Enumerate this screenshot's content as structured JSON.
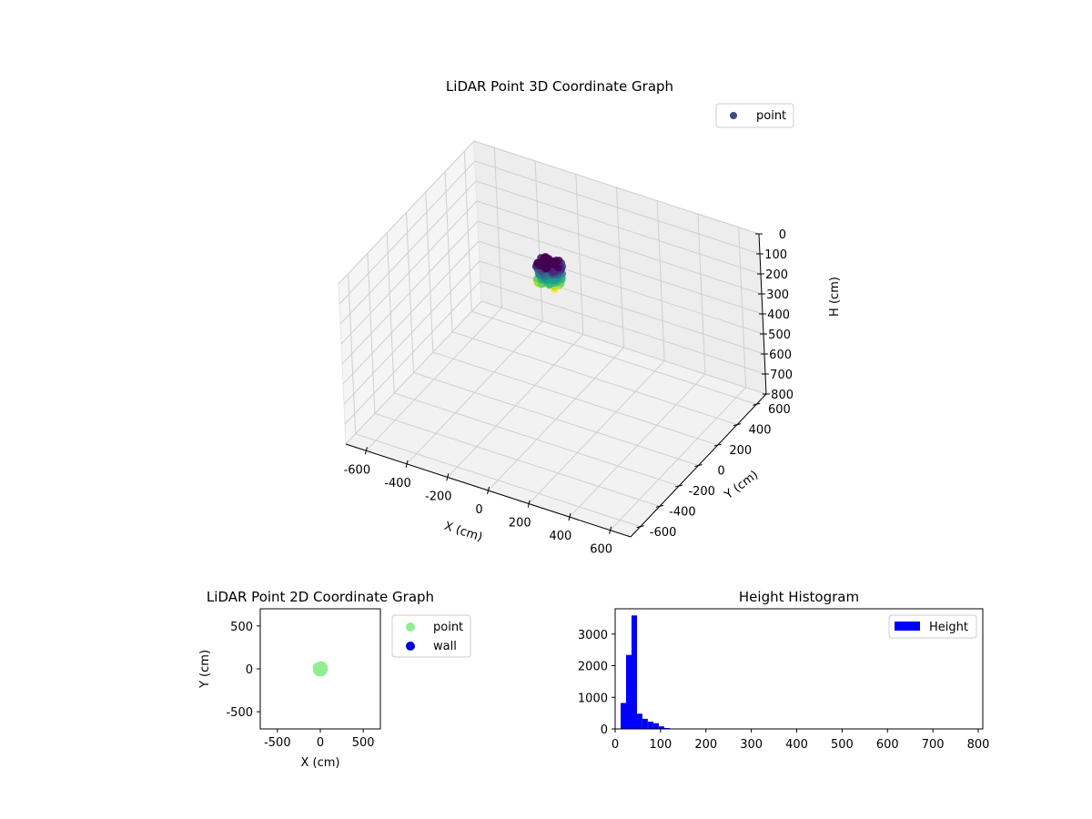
{
  "chart_data": [
    {
      "type": "scatter3d",
      "title": "LiDAR Point 3D Coordinate Graph",
      "xlabel": "X (cm)",
      "ylabel": "Y (cm)",
      "zlabel": "H (cm)",
      "xlim": [
        -700,
        700
      ],
      "ylim": [
        -700,
        700
      ],
      "zlim": [
        0,
        800
      ],
      "z_inverted": true,
      "x_ticks": [
        -600,
        -400,
        -200,
        0,
        200,
        400,
        600
      ],
      "y_ticks": [
        -600,
        -400,
        -200,
        0,
        200,
        400,
        600
      ],
      "z_ticks": [
        0,
        100,
        200,
        300,
        400,
        500,
        600,
        700,
        800
      ],
      "grid": true,
      "colormap": "viridis",
      "legend": {
        "placement": "upper-right",
        "entries": [
          {
            "label": "point",
            "color": "#3e4a89"
          }
        ]
      },
      "cluster": {
        "x_range": [
          -60,
          60
        ],
        "y_range": [
          -60,
          60
        ],
        "h_range": [
          10,
          120
        ]
      }
    },
    {
      "type": "scatter",
      "title": "LiDAR Point 2D Coordinate Graph",
      "xlabel": "X (cm)",
      "ylabel": "Y (cm)",
      "xlim": [
        -700,
        700
      ],
      "ylim": [
        -700,
        700
      ],
      "x_ticks": [
        -500,
        0,
        500
      ],
      "y_ticks": [
        -500,
        0,
        500
      ],
      "legend": {
        "placement": "outside-right",
        "entries": [
          {
            "label": "point",
            "color": "#90ee90"
          },
          {
            "label": "wall",
            "color": "#0000dd"
          }
        ]
      },
      "series": [
        {
          "name": "point",
          "color": "#90ee90",
          "cluster": {
            "x_range": [
              -60,
              60
            ],
            "y_range": [
              -60,
              60
            ]
          }
        },
        {
          "name": "wall",
          "color": "#0000dd",
          "points": []
        }
      ]
    },
    {
      "type": "bar",
      "title": "Height Histogram",
      "xlabel": "",
      "ylabel": "",
      "xlim": [
        0,
        810
      ],
      "ylim": [
        0,
        3800
      ],
      "x_ticks": [
        0,
        100,
        200,
        300,
        400,
        500,
        600,
        700,
        800
      ],
      "y_ticks": [
        0,
        1000,
        2000,
        3000
      ],
      "bin_width": 12,
      "bin_edges_start": 0,
      "values": [
        0,
        820,
        2340,
        3590,
        480,
        320,
        230,
        180,
        80,
        30,
        15,
        10
      ],
      "color": "#0000ff",
      "legend": {
        "placement": "upper-right",
        "entries": [
          {
            "label": "Height",
            "color": "#0000ff"
          }
        ]
      }
    }
  ]
}
